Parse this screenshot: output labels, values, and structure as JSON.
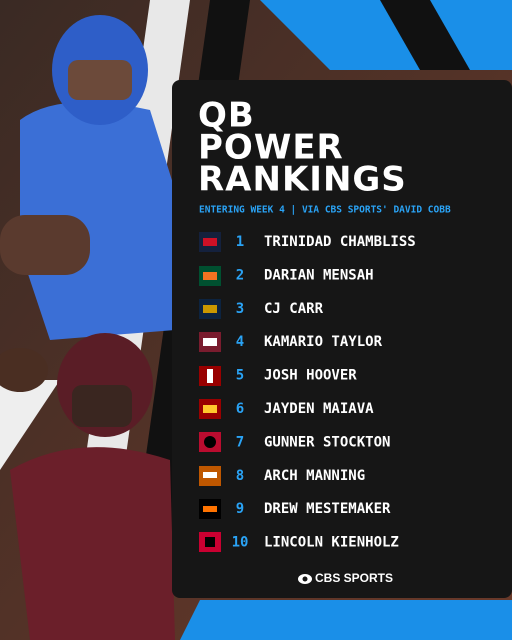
{
  "header": {
    "title_lines": [
      "QB",
      "POWER",
      "RANKINGS"
    ],
    "subtitle": "ENTERING WEEK 4 | VIA CBS SPORTS' DAVID COBB"
  },
  "rankings": [
    {
      "rank": 1,
      "name": "TRINIDAD CHAMBLISS"
    },
    {
      "rank": 2,
      "name": "DARIAN MENSAH"
    },
    {
      "rank": 3,
      "name": "CJ CARR"
    },
    {
      "rank": 4,
      "name": "KAMARIO TAYLOR"
    },
    {
      "rank": 5,
      "name": "JOSH HOOVER"
    },
    {
      "rank": 6,
      "name": "JAYDEN MAIAVA"
    },
    {
      "rank": 7,
      "name": "GUNNER STOCKTON"
    },
    {
      "rank": 8,
      "name": "ARCH MANNING"
    },
    {
      "rank": 9,
      "name": "DREW MESTEMAKER"
    },
    {
      "rank": 10,
      "name": "LINCOLN KIENHOLZ"
    }
  ],
  "footer": {
    "brand": "CBS SPORTS"
  }
}
